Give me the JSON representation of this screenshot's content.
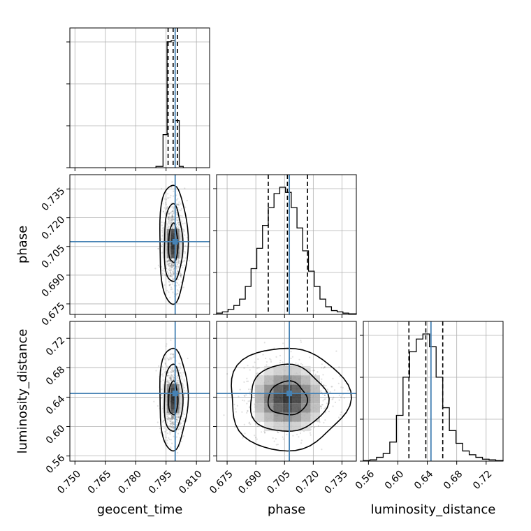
{
  "chart_data": {
    "type": "corner",
    "parameters": [
      "geocent_time",
      "phase",
      "luminosity_distance"
    ],
    "ranges": {
      "geocent_time": [
        0.7475,
        0.8165
      ],
      "phase": [
        0.6695,
        0.7425
      ],
      "luminosity_distance": [
        0.553,
        0.743
      ]
    },
    "ticks": {
      "geocent_time": [
        "0.750",
        "0.765",
        "0.780",
        "0.795",
        "0.810"
      ],
      "phase": [
        "0.675",
        "0.690",
        "0.705",
        "0.720",
        "0.735"
      ],
      "luminosity_distance": [
        "0.56",
        "0.60",
        "0.64",
        "0.68",
        "0.72"
      ]
    },
    "truths": {
      "geocent_time": 0.7995,
      "phase": 0.7075,
      "luminosity_distance": 0.645
    },
    "quantiles": {
      "geocent_time": [
        0.796,
        0.7985,
        0.8006
      ],
      "phase": [
        0.6965,
        0.7065,
        0.717
      ],
      "luminosity_distance": [
        0.615,
        0.638,
        0.661
      ]
    },
    "histograms": {
      "geocent_time": {
        "edges": [
          0.79,
          0.7935,
          0.7955,
          0.7975,
          0.7995,
          0.8015,
          0.8035
        ],
        "counts": [
          0.01,
          0.26,
          0.99,
          1.0,
          0.37,
          0.01
        ]
      },
      "phase": {
        "edges": [
          0.6695,
          0.6725,
          0.6755,
          0.6785,
          0.6815,
          0.6845,
          0.6875,
          0.6905,
          0.6935,
          0.6965,
          0.6995,
          0.7025,
          0.7055,
          0.7085,
          0.7115,
          0.7145,
          0.7175,
          0.7205,
          0.7235,
          0.7265,
          0.7295,
          0.7325,
          0.7355,
          0.7385,
          0.7425
        ],
        "counts": [
          0.01,
          0.02,
          0.04,
          0.07,
          0.12,
          0.22,
          0.36,
          0.52,
          0.7,
          0.84,
          0.95,
          1.0,
          0.96,
          0.84,
          0.68,
          0.5,
          0.34,
          0.22,
          0.12,
          0.06,
          0.03,
          0.02,
          0.01,
          0.005
        ]
      },
      "luminosity_distance": {
        "edges": [
          0.553,
          0.562,
          0.571,
          0.58,
          0.589,
          0.598,
          0.607,
          0.616,
          0.625,
          0.634,
          0.643,
          0.652,
          0.661,
          0.67,
          0.679,
          0.688,
          0.697,
          0.706,
          0.715,
          0.724,
          0.733,
          0.743
        ],
        "counts": [
          0.005,
          0.01,
          0.03,
          0.06,
          0.15,
          0.36,
          0.66,
          0.86,
          0.96,
          1.0,
          0.9,
          0.66,
          0.42,
          0.24,
          0.14,
          0.08,
          0.05,
          0.03,
          0.015,
          0.01,
          0.005
        ]
      }
    },
    "contour_levels": [
      0.39,
      0.86,
      0.99
    ],
    "grid": true
  }
}
